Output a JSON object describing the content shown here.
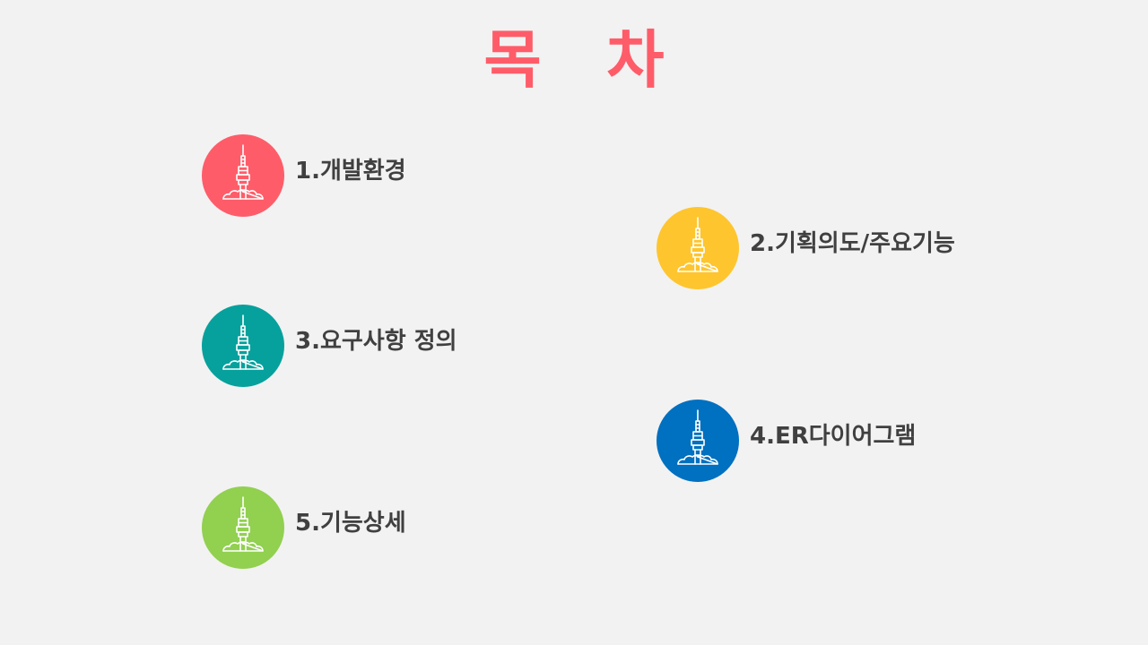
{
  "title": "목 차",
  "icon_name": "tower-icon",
  "items": [
    {
      "label": "1.개발환경",
      "color": "#ff5c69"
    },
    {
      "label": "2.기획의도/주요기능",
      "color": "#fec52e"
    },
    {
      "label": "3.요구사항 정의",
      "color": "#06a19d"
    },
    {
      "label": "4.ER다이어그램",
      "color": "#0070c0"
    },
    {
      "label": "5.기능상세",
      "color": "#92d050"
    }
  ]
}
